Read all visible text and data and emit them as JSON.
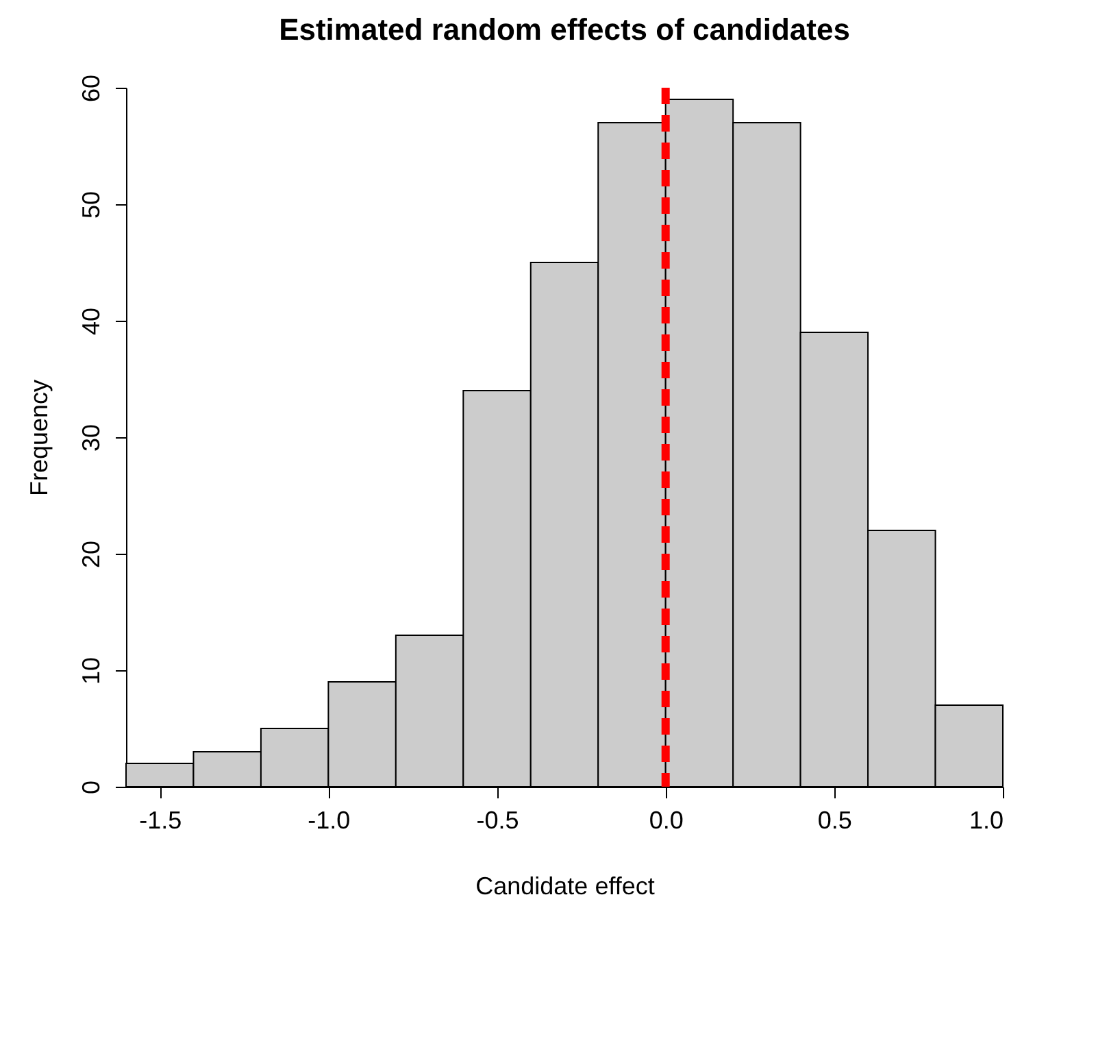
{
  "chart_data": {
    "type": "histogram",
    "title": "Estimated random effects of candidates",
    "xlabel": "Candidate effect",
    "ylabel": "Frequency",
    "bins": [
      -1.6,
      -1.4,
      -1.2,
      -1.0,
      -0.8,
      -0.6,
      -0.4,
      -0.2,
      0.0,
      0.2,
      0.4,
      0.6,
      0.8,
      1.0
    ],
    "values": [
      2,
      3,
      5,
      9,
      13,
      34,
      45,
      57,
      59,
      57,
      39,
      22,
      7
    ],
    "color": "#cccccc",
    "xlim": [
      -1.6,
      1.0
    ],
    "xticks": [
      {
        "value": -1.5,
        "label": "-1.5"
      },
      {
        "value": -1.0,
        "label": "-1.0"
      },
      {
        "value": -0.5,
        "label": "-0.5"
      },
      {
        "value": 0,
        "label": "0.0"
      },
      {
        "value": 0.5,
        "label": "0.5"
      },
      {
        "value": 1.0,
        "label": "1.0"
      }
    ],
    "ylim": [
      0,
      60
    ],
    "yticks": [
      0,
      10,
      20,
      30,
      40,
      50,
      60
    ],
    "grid": false,
    "ref_lines": [
      {
        "axis": "x",
        "value": 0,
        "color": "#ff0000",
        "line_style": "dashed"
      }
    ]
  }
}
